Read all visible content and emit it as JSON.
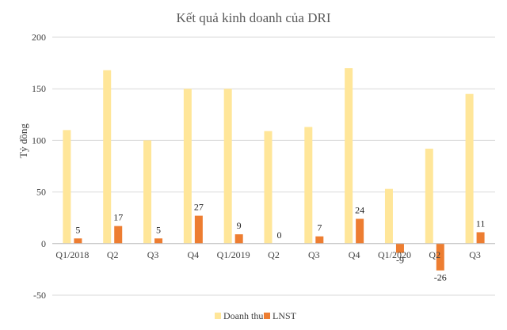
{
  "chart_data": {
    "type": "bar",
    "title": "Kết quả kinh  doanh của DRI",
    "ylabel": "Tỷ đồng",
    "xlabel": "",
    "ylim": [
      -50,
      200
    ],
    "yticks": [
      -50,
      0,
      50,
      100,
      150,
      200
    ],
    "grid": true,
    "legend_position": "bottom",
    "categories": [
      "Q1/2018",
      "Q2",
      "Q3",
      "Q4",
      "Q1/2019",
      "Q2",
      "Q3",
      "Q4",
      "Q1/2020",
      "Q2",
      "Q3"
    ],
    "series": [
      {
        "name": "Doanh thu",
        "color": "#ffe699",
        "values": [
          110,
          168,
          100,
          150,
          150,
          109,
          113,
          170,
          53,
          92,
          145
        ],
        "show_labels": false
      },
      {
        "name": "LNST",
        "color": "#ed7d31",
        "values": [
          5,
          17,
          5,
          27,
          9,
          0,
          7,
          24,
          -9,
          -26,
          11
        ],
        "show_labels": true
      }
    ]
  }
}
